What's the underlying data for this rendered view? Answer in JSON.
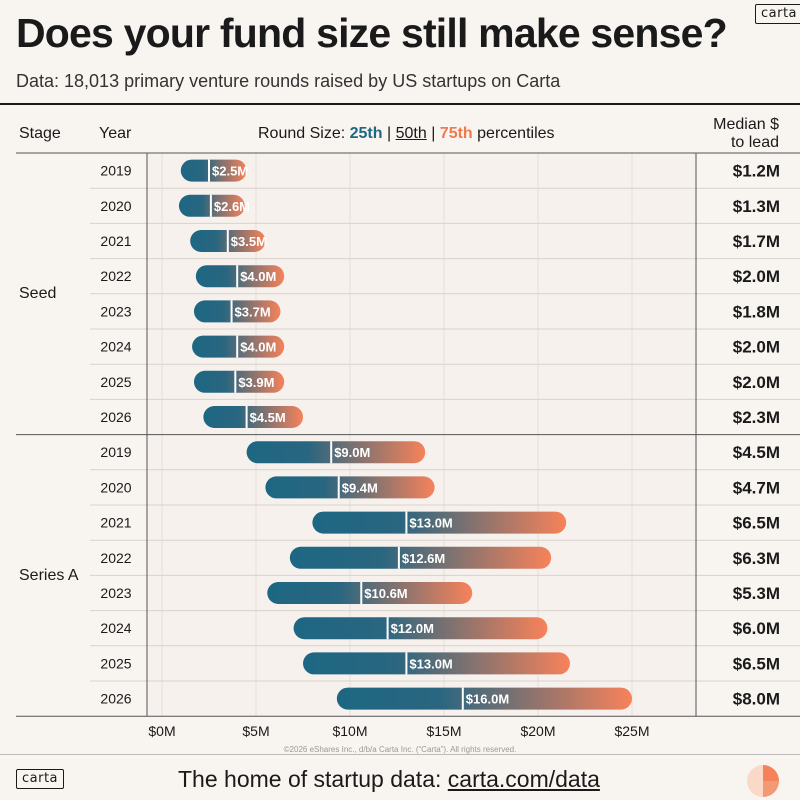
{
  "header": {
    "logo": "carta",
    "title": "Does your fund size still make sense?",
    "subtitle": "Data: 18,013 primary venture rounds raised by US startups on Carta"
  },
  "columns": {
    "stage": "Stage",
    "year": "Year",
    "round_prefix": "Round Size:",
    "p25": "25th",
    "p50": "50th",
    "p75": "75th",
    "round_suffix": "percentiles",
    "median_line1": "Median $",
    "median_line2": "to lead"
  },
  "chart_data": {
    "type": "bar",
    "subtype": "range-bar",
    "title": "Does your fund size still make sense?",
    "xlim": [
      0,
      26
    ],
    "xticks": [
      "$0M",
      "$5M",
      "$10M",
      "$15M",
      "$20M",
      "$25M"
    ],
    "xtick_values": [
      0,
      5,
      10,
      15,
      20,
      25
    ],
    "grid": true,
    "colors": {
      "p25": "#1d6783",
      "p75": "#f7825a"
    },
    "groups": [
      {
        "stage": "Seed",
        "rows": [
          {
            "year": "2019",
            "p25": 1.0,
            "p50": 2.5,
            "p75": 4.5,
            "label": "$2.5M",
            "median_to_lead": "$1.2M"
          },
          {
            "year": "2020",
            "p25": 0.9,
            "p50": 2.6,
            "p75": 4.4,
            "label": "$2.6M",
            "median_to_lead": "$1.3M"
          },
          {
            "year": "2021",
            "p25": 1.5,
            "p50": 3.5,
            "p75": 5.5,
            "label": "$3.5M",
            "median_to_lead": "$1.7M"
          },
          {
            "year": "2022",
            "p25": 1.8,
            "p50": 4.0,
            "p75": 6.5,
            "label": "$4.0M",
            "median_to_lead": "$2.0M"
          },
          {
            "year": "2023",
            "p25": 1.7,
            "p50": 3.7,
            "p75": 6.3,
            "label": "$3.7M",
            "median_to_lead": "$1.8M"
          },
          {
            "year": "2024",
            "p25": 1.6,
            "p50": 4.0,
            "p75": 6.5,
            "label": "$4.0M",
            "median_to_lead": "$2.0M"
          },
          {
            "year": "2025",
            "p25": 1.7,
            "p50": 3.9,
            "p75": 6.5,
            "label": "$3.9M",
            "median_to_lead": "$2.0M"
          },
          {
            "year": "2026",
            "p25": 2.2,
            "p50": 4.5,
            "p75": 7.5,
            "label": "$4.5M",
            "median_to_lead": "$2.3M"
          }
        ]
      },
      {
        "stage": "Series A",
        "rows": [
          {
            "year": "2019",
            "p25": 4.5,
            "p50": 9.0,
            "p75": 14.0,
            "label": "$9.0M",
            "median_to_lead": "$4.5M"
          },
          {
            "year": "2020",
            "p25": 5.5,
            "p50": 9.4,
            "p75": 14.5,
            "label": "$9.4M",
            "median_to_lead": "$4.7M"
          },
          {
            "year": "2021",
            "p25": 8.0,
            "p50": 13.0,
            "p75": 21.5,
            "label": "$13.0M",
            "median_to_lead": "$6.5M"
          },
          {
            "year": "2022",
            "p25": 6.8,
            "p50": 12.6,
            "p75": 20.7,
            "label": "$12.6M",
            "median_to_lead": "$6.3M"
          },
          {
            "year": "2023",
            "p25": 5.6,
            "p50": 10.6,
            "p75": 16.5,
            "label": "$10.6M",
            "median_to_lead": "$5.3M"
          },
          {
            "year": "2024",
            "p25": 7.0,
            "p50": 12.0,
            "p75": 20.5,
            "label": "$12.0M",
            "median_to_lead": "$6.0M"
          },
          {
            "year": "2025",
            "p25": 7.5,
            "p50": 13.0,
            "p75": 21.7,
            "label": "$13.0M",
            "median_to_lead": "$6.5M"
          },
          {
            "year": "2026",
            "p25": 9.3,
            "p50": 16.0,
            "p75": 25.0,
            "label": "$16.0M",
            "median_to_lead": "$8.0M"
          }
        ]
      }
    ]
  },
  "footer": {
    "copyright": "©2026 eShares Inc., d/b/a Carta Inc. (“Carta”). All rights reserved.",
    "tagline_prefix": "The home of startup data:",
    "tagline_link": "carta.com/data",
    "logo": "carta"
  }
}
